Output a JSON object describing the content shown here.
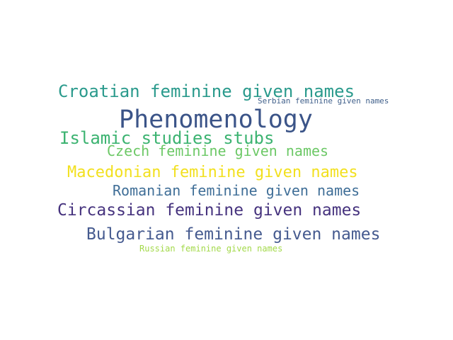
{
  "words": [
    {
      "text": "Croatian feminine given names",
      "color": "#2a9a8c"
    },
    {
      "text": "Serbian feminine given names",
      "color": "#3f5f8a"
    },
    {
      "text": "Phenomenology",
      "color": "#3b5488"
    },
    {
      "text": "Islamic studies stubs",
      "color": "#3cb371"
    },
    {
      "text": "Czech feminine given names",
      "color": "#6cc866"
    },
    {
      "text": "Macedonian feminine given names",
      "color": "#f2e01f"
    },
    {
      "text": "Romanian feminine given names",
      "color": "#3f6e97"
    },
    {
      "text": "Circassian feminine given names",
      "color": "#46337e"
    },
    {
      "text": "Bulgarian feminine given names",
      "color": "#455a8f"
    },
    {
      "text": "Russian feminine given names",
      "color": "#a3d94a"
    }
  ]
}
